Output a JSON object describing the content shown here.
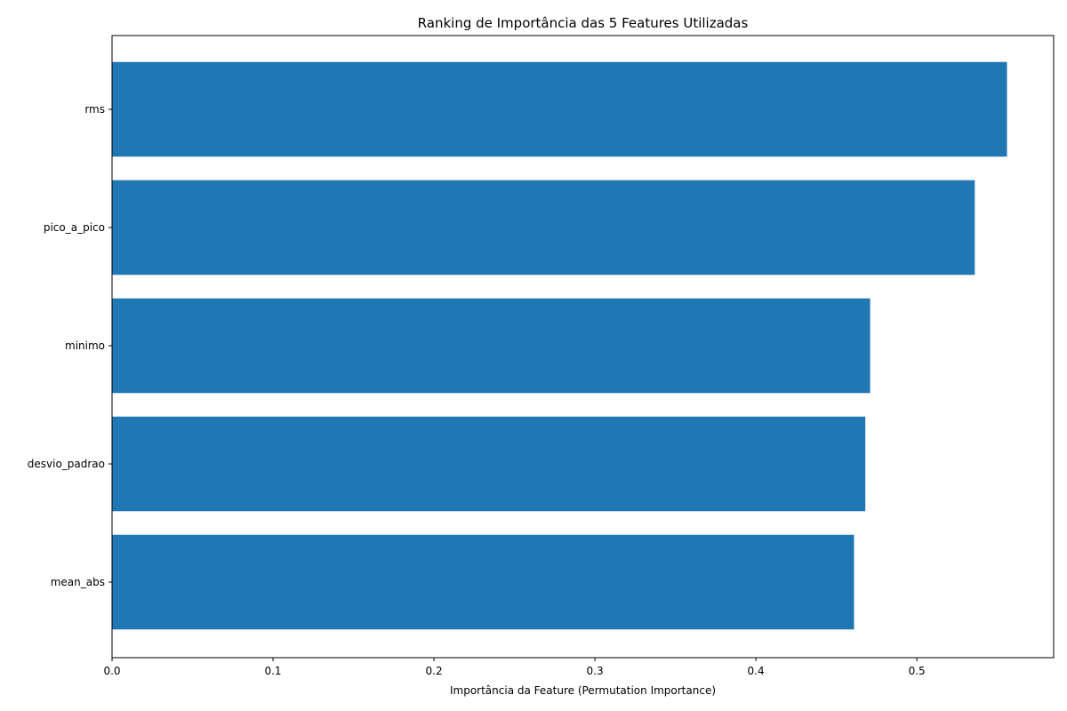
{
  "chart_data": {
    "type": "bar",
    "orientation": "horizontal",
    "title": "Ranking de Importância das 5 Features Utilizadas",
    "xlabel": "Importância da Feature (Permutation Importance)",
    "ylabel": "",
    "categories": [
      "rms",
      "pico_a_pico",
      "minimo",
      "desvio_padrao",
      "mean_abs"
    ],
    "values": [
      0.556,
      0.536,
      0.471,
      0.468,
      0.461
    ],
    "xlim": [
      0,
      0.585
    ],
    "xticks": [
      "0.0",
      "0.1",
      "0.2",
      "0.3",
      "0.4",
      "0.5"
    ],
    "grid": false,
    "bar_color": "#1f77b4"
  }
}
